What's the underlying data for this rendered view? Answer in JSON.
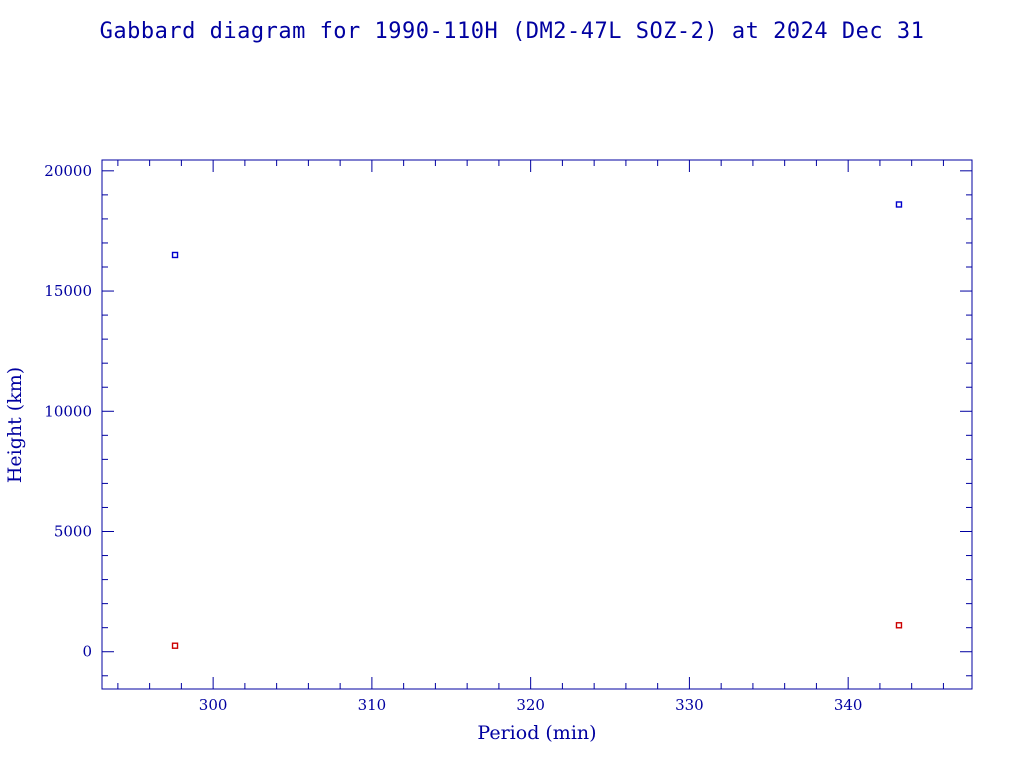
{
  "chart_data": {
    "type": "scatter",
    "title": "Gabbard diagram for 1990-110H (DM2-47L SOZ-2) at 2024 Dec 31",
    "xlabel": "Period (min)",
    "ylabel": "Height (km)",
    "xlim": [
      293,
      347.8
    ],
    "ylim": [
      -1550,
      20450
    ],
    "x_ticks": [
      300,
      310,
      320,
      330,
      340
    ],
    "x_tick_labels": [
      "300",
      "310",
      "320",
      "330",
      "340"
    ],
    "x_minor_step": 2,
    "y_ticks": [
      0,
      5000,
      10000,
      15000,
      20000
    ],
    "y_tick_labels": [
      "0",
      "5000",
      "10000",
      "15000",
      "20000"
    ],
    "y_minor_step": 1000,
    "grid": false,
    "series": [
      {
        "role": "apogee",
        "color": "#0000cc",
        "x": [
          297.6,
          343.2
        ],
        "y": [
          16500,
          18600
        ]
      },
      {
        "role": "perigee",
        "color": "#cc0000",
        "x": [
          297.6,
          343.2
        ],
        "y": [
          250,
          1100
        ]
      }
    ]
  },
  "colors": {
    "text": "#0000a0",
    "axis": "#0000a0"
  }
}
